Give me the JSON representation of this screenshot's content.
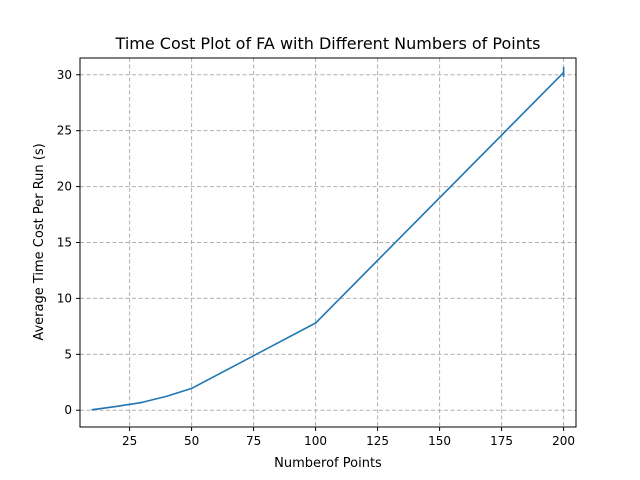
{
  "chart_data": {
    "type": "line",
    "title": "Time Cost Plot of FA with Different Numbers of Points",
    "xlabel": "Numberof Points",
    "ylabel": "Average Time Cost Per Run (s)",
    "xlim": [
      5,
      205
    ],
    "ylim": [
      -1.5,
      31.5
    ],
    "xticks": [
      25,
      50,
      75,
      100,
      125,
      150,
      175,
      200
    ],
    "yticks": [
      0,
      5,
      10,
      15,
      20,
      25,
      30
    ],
    "grid": true,
    "color": "#1f77b4",
    "series": [
      {
        "x": [
          10,
          20,
          30,
          40,
          50,
          100,
          200
        ],
        "y": [
          0.05,
          0.35,
          0.7,
          1.25,
          1.95,
          7.8,
          30.2
        ]
      }
    ],
    "error_bar": {
      "x": 200,
      "y": 30.2,
      "low": 29.8,
      "high": 30.7
    }
  }
}
